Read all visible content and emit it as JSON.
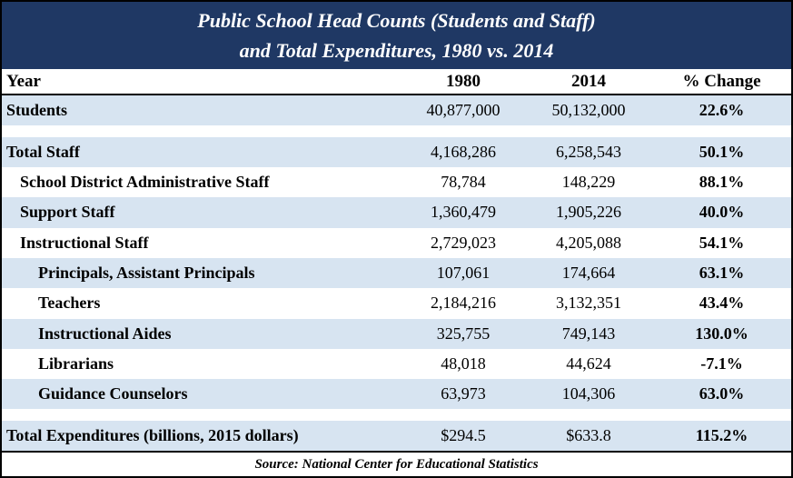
{
  "chart_data": {
    "type": "table",
    "title": "Public School Head Counts (Students and Staff) and Total Expenditures, 1980 vs. 2014",
    "title_line1": "Public School Head Counts (Students and Staff)",
    "title_line2": "and Total Expenditures, 1980 vs. 2014",
    "columns": [
      "Year",
      "1980",
      "2014",
      "% Change"
    ],
    "rows": [
      [
        "Students",
        "40,877,000",
        "50,132,000",
        "22.6%"
      ],
      [
        "Total Staff",
        "4,168,286",
        "6,258,543",
        "50.1%"
      ],
      [
        "School District Administrative Staff",
        "78,784",
        "148,229",
        "88.1%"
      ],
      [
        "Support Staff",
        "1,360,479",
        "1,905,226",
        "40.0%"
      ],
      [
        "Instructional Staff",
        "2,729,023",
        "4,205,088",
        "54.1%"
      ],
      [
        "Principals, Assistant Principals",
        "107,061",
        "174,664",
        "63.1%"
      ],
      [
        "Teachers",
        "2,184,216",
        "3,132,351",
        "43.4%"
      ],
      [
        "Instructional Aides",
        "325,755",
        "749,143",
        "130.0%"
      ],
      [
        "Librarians",
        "48,018",
        "44,624",
        "-7.1%"
      ],
      [
        "Guidance Counselors",
        "63,973",
        "104,306",
        "63.0%"
      ],
      [
        "Total Expenditures (billions, 2015 dollars)",
        "$294.5",
        "$633.8",
        "115.2%"
      ]
    ],
    "source": "Source: National Center for Educational Statistics"
  },
  "colors": {
    "header_bg": "#1f3864",
    "alt_row_bg": "#d7e4f1"
  }
}
